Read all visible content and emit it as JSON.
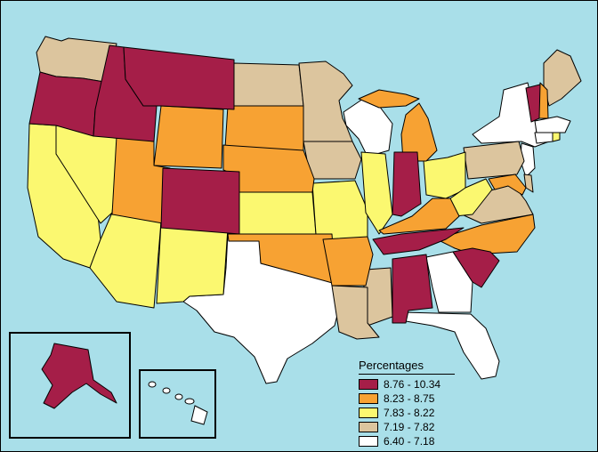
{
  "legend": {
    "title": "Percentages",
    "classes": [
      {
        "label": "8.76 - 10.34",
        "color": "#a51e48"
      },
      {
        "label": "8.23 - 8.75",
        "color": "#f7a233"
      },
      {
        "label": "7.83 - 8.22",
        "color": "#fbf870"
      },
      {
        "label": "7.19 - 7.82",
        "color": "#dcc59e"
      },
      {
        "label": "6.40 - 7.18",
        "color": "#ffffff"
      }
    ]
  },
  "colors": {
    "water": "#a9dfe9",
    "outline": "#000000"
  }
}
